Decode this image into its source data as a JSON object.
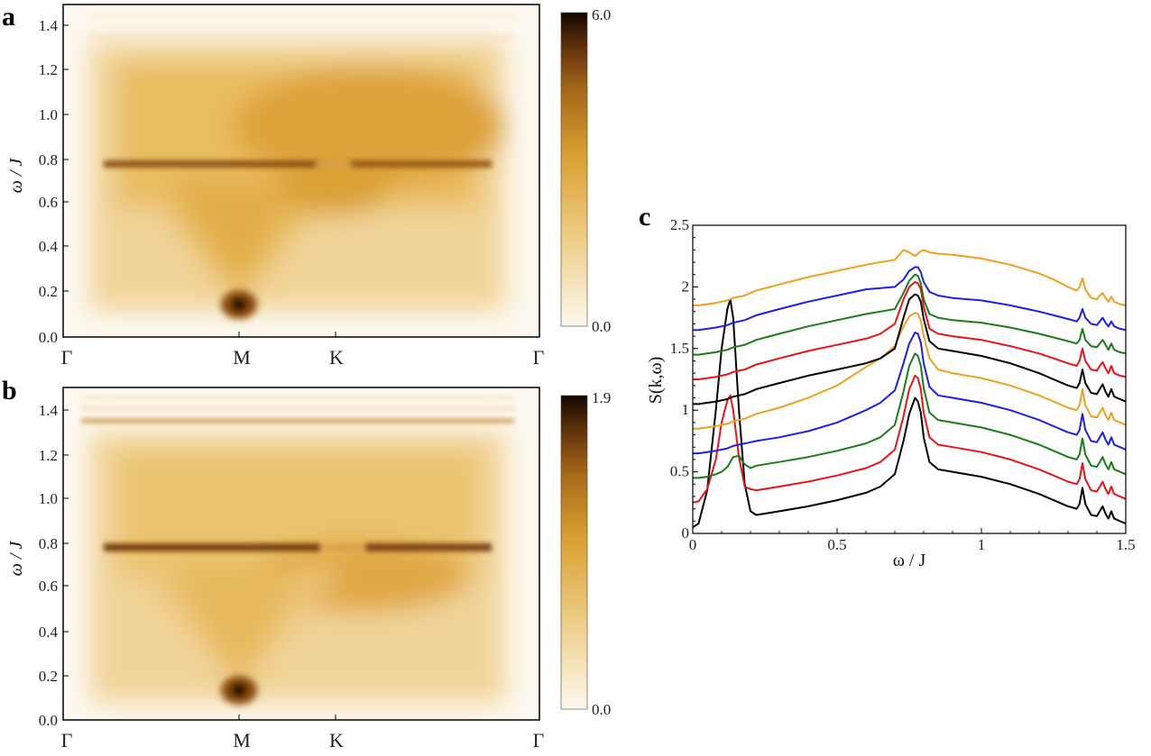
{
  "panels": {
    "a": {
      "letter": "a",
      "ylabel": "ω / J",
      "yticks": [
        "0.0",
        "0.2",
        "0.4",
        "0.6",
        "0.8",
        "1.0",
        "1.2",
        "1.4"
      ],
      "xticks": [
        "Γ",
        "M",
        "K",
        "Γ"
      ],
      "colorbar": {
        "max": "6.0",
        "min": "0.0"
      }
    },
    "b": {
      "letter": "b",
      "ylabel": "ω / J",
      "yticks": [
        "0.0",
        "0.2",
        "0.4",
        "0.6",
        "0.8",
        "1.0",
        "1.2",
        "1.4"
      ],
      "xticks": [
        "Γ",
        "M",
        "K",
        "Γ"
      ],
      "colorbar": {
        "max": "1.9",
        "min": "0.0"
      }
    },
    "c": {
      "letter": "c",
      "xlabel": "ω / J",
      "ylabel": "S(k,ω)",
      "xticks": [
        "0",
        "0.5",
        "1",
        "1.5"
      ],
      "yticks": [
        "0",
        "0.5",
        "1",
        "1.5",
        "2",
        "2.5"
      ]
    }
  },
  "colors": {
    "black": "#000000",
    "red": "#e8141a",
    "green": "#1a7d1a",
    "blue": "#1f1fe6",
    "orange": "#f0a020",
    "map_dark": "#1a0a03",
    "map_mid": "#dca230",
    "map_light": "#fbf4e6"
  },
  "chart_data": [
    {
      "type": "heatmap",
      "panel": "a",
      "title": "",
      "xlabel": "",
      "ylabel": "ω / J",
      "x_path": [
        "Γ",
        "M",
        "K",
        "Γ"
      ],
      "ylim": [
        0,
        1.5
      ],
      "colorbar_range": [
        0.0,
        6.0
      ],
      "features": [
        {
          "name": "band",
          "omega": 0.78,
          "strength": "strong"
        },
        {
          "name": "peak at M",
          "omega": 0.14,
          "strength": "max"
        },
        {
          "name": "band",
          "omega": 1.35,
          "strength": "weak"
        }
      ]
    },
    {
      "type": "heatmap",
      "panel": "b",
      "title": "",
      "xlabel": "",
      "ylabel": "ω / J",
      "x_path": [
        "Γ",
        "M",
        "K",
        "Γ"
      ],
      "ylim": [
        0,
        1.5
      ],
      "colorbar_range": [
        0.0,
        1.9
      ],
      "features": [
        {
          "name": "band",
          "omega": 0.77,
          "strength": "strong"
        },
        {
          "name": "peak at M",
          "omega": 0.12,
          "strength": "max"
        },
        {
          "name": "band",
          "omega": 1.35,
          "strength": "medium"
        }
      ]
    },
    {
      "type": "line",
      "panel": "c",
      "title": "",
      "xlabel": "ω / J",
      "ylabel": "S(k,ω)",
      "xlim": [
        0,
        1.5
      ],
      "ylim": [
        0,
        2.5
      ],
      "x": [
        0,
        0.02,
        0.05,
        0.08,
        0.1,
        0.12,
        0.13,
        0.14,
        0.16,
        0.18,
        0.2,
        0.22,
        0.3,
        0.4,
        0.5,
        0.6,
        0.65,
        0.7,
        0.73,
        0.75,
        0.77,
        0.78,
        0.79,
        0.8,
        0.82,
        0.85,
        0.9,
        1.0,
        1.1,
        1.2,
        1.25,
        1.3,
        1.33,
        1.34,
        1.35,
        1.36,
        1.38,
        1.4,
        1.41,
        1.42,
        1.43,
        1.44,
        1.45,
        1.46,
        1.48,
        1.5
      ],
      "series": [
        {
          "name": "k1",
          "color": "#000000",
          "offset": 0.0,
          "values": [
            0.05,
            0.08,
            0.35,
            1.0,
            1.5,
            1.82,
            1.9,
            1.75,
            1.0,
            0.4,
            0.18,
            0.15,
            0.18,
            0.22,
            0.27,
            0.33,
            0.38,
            0.48,
            0.75,
            0.97,
            1.1,
            1.07,
            0.98,
            0.78,
            0.58,
            0.52,
            0.5,
            0.46,
            0.4,
            0.32,
            0.27,
            0.22,
            0.2,
            0.24,
            0.37,
            0.24,
            0.15,
            0.14,
            0.18,
            0.22,
            0.16,
            0.12,
            0.18,
            0.12,
            0.1,
            0.08
          ]
        },
        {
          "name": "k2",
          "color": "#e8141a",
          "offset": 0.2,
          "values": [
            0.05,
            0.06,
            0.16,
            0.4,
            0.7,
            0.88,
            0.92,
            0.8,
            0.42,
            0.18,
            0.16,
            0.15,
            0.18,
            0.22,
            0.27,
            0.33,
            0.38,
            0.48,
            0.75,
            0.97,
            1.08,
            1.06,
            0.97,
            0.78,
            0.58,
            0.52,
            0.5,
            0.46,
            0.4,
            0.32,
            0.27,
            0.22,
            0.2,
            0.24,
            0.37,
            0.24,
            0.15,
            0.14,
            0.18,
            0.22,
            0.16,
            0.12,
            0.18,
            0.12,
            0.1,
            0.08
          ]
        },
        {
          "name": "k3",
          "color": "#1a7d1a",
          "offset": 0.4,
          "values": [
            0.05,
            0.05,
            0.06,
            0.08,
            0.1,
            0.14,
            0.18,
            0.22,
            0.23,
            0.16,
            0.13,
            0.15,
            0.18,
            0.22,
            0.27,
            0.33,
            0.38,
            0.48,
            0.75,
            0.96,
            1.06,
            1.04,
            0.96,
            0.78,
            0.58,
            0.52,
            0.5,
            0.46,
            0.4,
            0.32,
            0.27,
            0.22,
            0.2,
            0.24,
            0.37,
            0.24,
            0.15,
            0.14,
            0.18,
            0.22,
            0.16,
            0.12,
            0.18,
            0.12,
            0.1,
            0.08
          ]
        },
        {
          "name": "k4",
          "color": "#1f1fe6",
          "offset": 0.6,
          "values": [
            0.05,
            0.05,
            0.06,
            0.07,
            0.08,
            0.09,
            0.1,
            0.11,
            0.12,
            0.13,
            0.14,
            0.15,
            0.18,
            0.23,
            0.3,
            0.4,
            0.46,
            0.56,
            0.78,
            0.94,
            1.03,
            1.02,
            0.95,
            0.78,
            0.59,
            0.52,
            0.5,
            0.46,
            0.4,
            0.32,
            0.27,
            0.22,
            0.2,
            0.24,
            0.37,
            0.24,
            0.15,
            0.14,
            0.18,
            0.22,
            0.16,
            0.12,
            0.18,
            0.12,
            0.1,
            0.08
          ]
        },
        {
          "name": "k5",
          "color": "#f0a020",
          "offset": 0.8,
          "values": [
            0.05,
            0.05,
            0.06,
            0.07,
            0.08,
            0.09,
            0.1,
            0.11,
            0.12,
            0.13,
            0.15,
            0.17,
            0.22,
            0.3,
            0.4,
            0.55,
            0.62,
            0.72,
            0.88,
            0.96,
            0.99,
            0.98,
            0.93,
            0.8,
            0.62,
            0.53,
            0.5,
            0.46,
            0.4,
            0.32,
            0.27,
            0.22,
            0.2,
            0.24,
            0.37,
            0.24,
            0.15,
            0.14,
            0.18,
            0.22,
            0.16,
            0.12,
            0.18,
            0.12,
            0.1,
            0.08
          ]
        },
        {
          "name": "k6",
          "color": "#000000",
          "offset": 1.0,
          "values": [
            0.05,
            0.05,
            0.06,
            0.07,
            0.08,
            0.09,
            0.1,
            0.11,
            0.12,
            0.13,
            0.15,
            0.17,
            0.22,
            0.28,
            0.33,
            0.38,
            0.42,
            0.5,
            0.75,
            0.9,
            0.94,
            0.93,
            0.88,
            0.74,
            0.56,
            0.5,
            0.48,
            0.44,
            0.38,
            0.3,
            0.25,
            0.2,
            0.18,
            0.22,
            0.33,
            0.22,
            0.14,
            0.13,
            0.17,
            0.21,
            0.15,
            0.11,
            0.17,
            0.11,
            0.09,
            0.07
          ]
        },
        {
          "name": "k7",
          "color": "#e8141a",
          "offset": 1.2,
          "values": [
            0.05,
            0.05,
            0.06,
            0.07,
            0.08,
            0.09,
            0.1,
            0.11,
            0.12,
            0.13,
            0.15,
            0.17,
            0.22,
            0.28,
            0.33,
            0.38,
            0.42,
            0.5,
            0.7,
            0.8,
            0.84,
            0.83,
            0.78,
            0.64,
            0.46,
            0.42,
            0.4,
            0.37,
            0.32,
            0.26,
            0.22,
            0.18,
            0.16,
            0.2,
            0.3,
            0.2,
            0.13,
            0.12,
            0.16,
            0.19,
            0.14,
            0.1,
            0.16,
            0.1,
            0.08,
            0.07
          ]
        },
        {
          "name": "k8",
          "color": "#1a7d1a",
          "offset": 1.4,
          "values": [
            0.05,
            0.05,
            0.06,
            0.07,
            0.08,
            0.09,
            0.1,
            0.11,
            0.12,
            0.13,
            0.15,
            0.17,
            0.22,
            0.28,
            0.33,
            0.38,
            0.4,
            0.42,
            0.55,
            0.65,
            0.7,
            0.69,
            0.63,
            0.5,
            0.38,
            0.35,
            0.33,
            0.31,
            0.27,
            0.22,
            0.19,
            0.16,
            0.14,
            0.17,
            0.26,
            0.17,
            0.12,
            0.11,
            0.14,
            0.17,
            0.13,
            0.09,
            0.14,
            0.09,
            0.07,
            0.06
          ]
        },
        {
          "name": "k9",
          "color": "#1f1fe6",
          "offset": 1.6,
          "values": [
            0.05,
            0.05,
            0.06,
            0.07,
            0.08,
            0.09,
            0.1,
            0.11,
            0.12,
            0.13,
            0.15,
            0.17,
            0.22,
            0.28,
            0.33,
            0.38,
            0.39,
            0.4,
            0.46,
            0.53,
            0.56,
            0.56,
            0.52,
            0.44,
            0.36,
            0.33,
            0.31,
            0.29,
            0.25,
            0.2,
            0.17,
            0.14,
            0.12,
            0.15,
            0.22,
            0.15,
            0.1,
            0.09,
            0.12,
            0.15,
            0.11,
            0.08,
            0.12,
            0.08,
            0.06,
            0.05
          ]
        },
        {
          "name": "k10",
          "color": "#f0a020",
          "offset": 1.8,
          "values": [
            0.05,
            0.05,
            0.06,
            0.07,
            0.08,
            0.09,
            0.1,
            0.11,
            0.12,
            0.13,
            0.15,
            0.17,
            0.22,
            0.28,
            0.33,
            0.38,
            0.4,
            0.42,
            0.5,
            0.48,
            0.45,
            0.47,
            0.49,
            0.5,
            0.48,
            0.47,
            0.46,
            0.43,
            0.38,
            0.31,
            0.26,
            0.2,
            0.17,
            0.2,
            0.27,
            0.18,
            0.11,
            0.1,
            0.13,
            0.15,
            0.11,
            0.08,
            0.12,
            0.08,
            0.06,
            0.05
          ]
        }
      ]
    }
  ]
}
